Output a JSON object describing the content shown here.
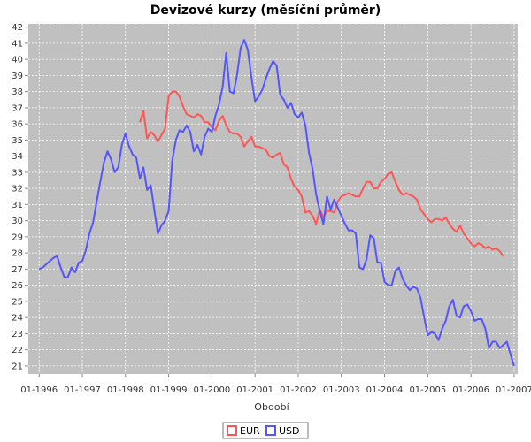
{
  "chart_data": {
    "type": "line",
    "title": "Devizové kurzy (měsíční průměr)",
    "xlabel": "Období",
    "ylabel": "",
    "ylim": [
      20.5,
      42.2
    ],
    "y_ticks": [
      21,
      22,
      23,
      24,
      25,
      26,
      27,
      28,
      29,
      30,
      31,
      32,
      33,
      34,
      35,
      36,
      37,
      38,
      39,
      40,
      41,
      42
    ],
    "x_ticks": [
      "01-1996",
      "01-1997",
      "01-1998",
      "01-1999",
      "01-2000",
      "01-2001",
      "01-2002",
      "01-2003",
      "01-2004",
      "01-2005",
      "01-2006",
      "01-2007"
    ],
    "x_range": [
      "1995-10",
      "2007-02"
    ],
    "grid": true,
    "legend_position": "bottom",
    "colors": {
      "plot_background": "#c0c0c0",
      "grid": "#ffffff",
      "EUR": "#ff5555",
      "USD": "#5555ff"
    },
    "series": [
      {
        "name": "EUR",
        "start": "1998-05",
        "values": [
          36.1,
          36.8,
          35.1,
          35.5,
          35.3,
          34.9,
          35.3,
          35.7,
          37.7,
          38.0,
          38.0,
          37.7,
          37.1,
          36.6,
          36.5,
          36.4,
          36.6,
          36.5,
          36.1,
          36.1,
          35.8,
          35.6,
          36.2,
          36.5,
          35.9,
          35.5,
          35.4,
          35.4,
          35.2,
          34.6,
          34.9,
          35.2,
          34.6,
          34.6,
          34.5,
          34.4,
          34.0,
          33.9,
          34.1,
          34.2,
          33.5,
          33.3,
          32.6,
          32.1,
          31.9,
          31.5,
          30.5,
          30.6,
          30.3,
          29.8,
          30.7,
          30.2,
          30.6,
          30.6,
          30.5,
          31.2,
          31.5,
          31.6,
          31.7,
          31.6,
          31.5,
          31.5,
          32.0,
          32.4,
          32.4,
          32.0,
          32.0,
          32.4,
          32.6,
          32.9,
          33.0,
          32.4,
          31.9,
          31.6,
          31.7,
          31.6,
          31.5,
          31.3,
          30.7,
          30.4,
          30.1,
          29.9,
          30.1,
          30.1,
          30.0,
          30.2,
          29.8,
          29.5,
          29.3,
          29.7,
          29.2,
          28.9,
          28.6,
          28.4,
          28.6,
          28.5,
          28.3,
          28.4,
          28.2,
          28.3,
          28.1,
          27.8
        ]
      },
      {
        "name": "USD",
        "start": "1996-01",
        "values": [
          27.0,
          27.1,
          27.3,
          27.5,
          27.7,
          27.8,
          27.1,
          26.5,
          26.5,
          27.1,
          26.8,
          27.4,
          27.5,
          28.2,
          29.2,
          29.9,
          31.2,
          32.4,
          33.6,
          34.3,
          33.8,
          33.0,
          33.3,
          34.7,
          35.4,
          34.6,
          34.1,
          33.9,
          32.6,
          33.3,
          31.9,
          32.2,
          30.7,
          29.2,
          29.7,
          30.0,
          30.6,
          33.7,
          35.0,
          35.6,
          35.5,
          35.9,
          35.5,
          34.3,
          34.7,
          34.1,
          35.2,
          35.7,
          35.5,
          36.5,
          37.2,
          38.3,
          40.4,
          38.0,
          37.9,
          39.0,
          40.7,
          41.2,
          40.6,
          38.9,
          37.4,
          37.7,
          38.1,
          38.8,
          39.4,
          39.9,
          39.6,
          37.8,
          37.5,
          37.0,
          37.3,
          36.6,
          36.4,
          36.7,
          35.9,
          34.2,
          33.2,
          31.6,
          30.6,
          29.8,
          31.5,
          30.7,
          31.3,
          30.8,
          30.3,
          29.8,
          29.4,
          29.4,
          29.2,
          27.1,
          27.0,
          27.6,
          29.1,
          28.9,
          27.4,
          27.4,
          26.2,
          26.0,
          26.0,
          26.9,
          27.1,
          26.4,
          26.0,
          25.7,
          25.9,
          25.8,
          25.2,
          24.0,
          22.9,
          23.1,
          23.0,
          22.6,
          23.3,
          23.8,
          24.7,
          25.1,
          24.1,
          24.0,
          24.7,
          24.8,
          24.4,
          23.8,
          23.9,
          23.9,
          23.3,
          22.1,
          22.5,
          22.5,
          22.1,
          22.3,
          22.5,
          21.7,
          21.0
        ]
      }
    ]
  }
}
